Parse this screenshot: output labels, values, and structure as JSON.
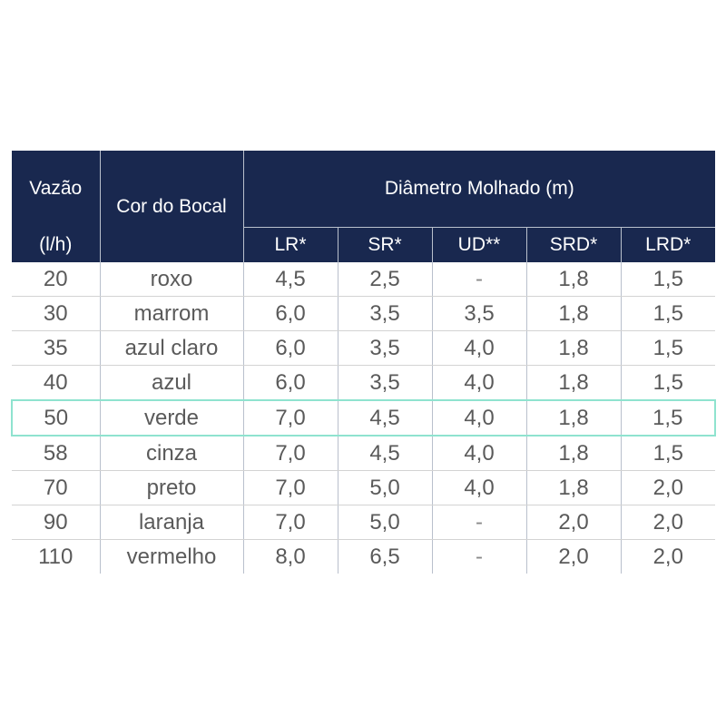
{
  "table": {
    "header": {
      "vazao": "Vazão",
      "vazao_unit": "(l/h)",
      "cor": "Cor do Bocal",
      "diametro": "Diâmetro Molhado (m)",
      "subcolumns": [
        "LR*",
        "SR*",
        "UD**",
        "SRD*",
        "LRD*"
      ]
    },
    "rows": [
      {
        "vazao": "20",
        "cor": "roxo",
        "values": [
          "4,5",
          "2,5",
          "-",
          "1,8",
          "1,5"
        ]
      },
      {
        "vazao": "30",
        "cor": "marrom",
        "values": [
          "6,0",
          "3,5",
          "3,5",
          "1,8",
          "1,5"
        ]
      },
      {
        "vazao": "35",
        "cor": "azul claro",
        "values": [
          "6,0",
          "3,5",
          "4,0",
          "1,8",
          "1,5"
        ]
      },
      {
        "vazao": "40",
        "cor": "azul",
        "values": [
          "6,0",
          "3,5",
          "4,0",
          "1,8",
          "1,5"
        ]
      },
      {
        "vazao": "50",
        "cor": "verde",
        "values": [
          "7,0",
          "4,5",
          "4,0",
          "1,8",
          "1,5"
        ]
      },
      {
        "vazao": "58",
        "cor": "cinza",
        "values": [
          "7,0",
          "4,5",
          "4,0",
          "1,8",
          "1,5"
        ]
      },
      {
        "vazao": "70",
        "cor": "preto",
        "values": [
          "7,0",
          "5,0",
          "4,0",
          "1,8",
          "2,0"
        ]
      },
      {
        "vazao": "90",
        "cor": "laranja",
        "values": [
          "7,0",
          "5,0",
          "-",
          "2,0",
          "2,0"
        ]
      },
      {
        "vazao": "110",
        "cor": "vermelho",
        "values": [
          "8,0",
          "6,5",
          "-",
          "2,0",
          "2,0"
        ]
      }
    ],
    "highlighted_row": 4,
    "colors": {
      "header_bg": "#19284f",
      "highlight_border": "#8fe3cf",
      "text": "#5a5a5a"
    }
  }
}
